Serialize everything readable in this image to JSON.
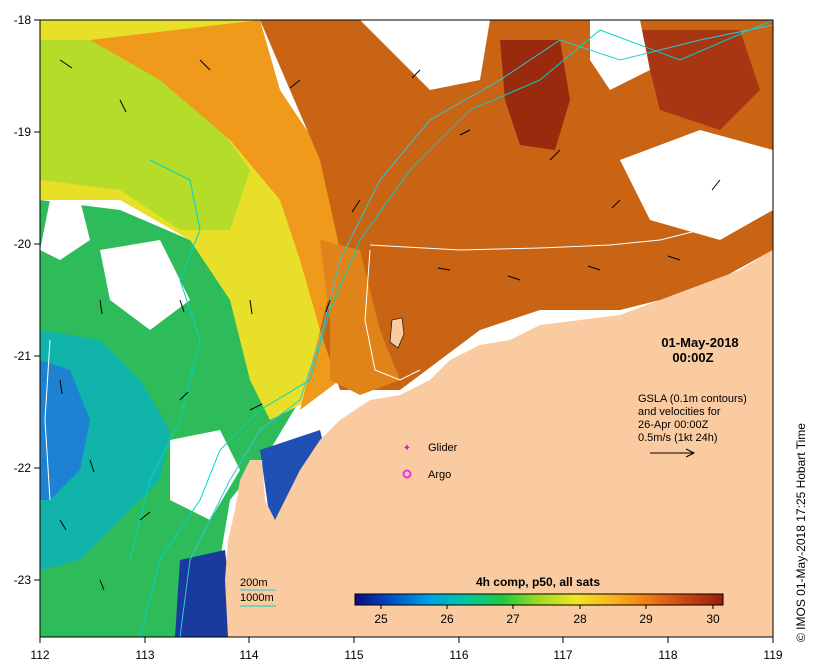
{
  "map": {
    "x_ticks": [
      "112",
      "113",
      "114",
      "115",
      "116",
      "117",
      "118",
      "119"
    ],
    "y_ticks": [
      "-18",
      "-19",
      "-20",
      "-21",
      "-22",
      "-23"
    ],
    "date": "01-May-2018",
    "time": "00:00Z",
    "gsla_lines": [
      "GSLA (0.1m contours)",
      "and velocities for",
      "26-Apr 00:00Z",
      "0.5m/s (1kt 24h)"
    ],
    "legend_glider": "Glider",
    "legend_argo": "Argo",
    "depth_200": "200m",
    "depth_1000": "1000m",
    "credit": "© IMOS 01-May-2018 17:25 Hobart Time"
  },
  "colorbar": {
    "title": "4h comp, p50, all sats",
    "labels": [
      "25",
      "26",
      "27",
      "28",
      "29",
      "30"
    ],
    "stops": [
      "#0a0a80",
      "#0050c8",
      "#00a0e6",
      "#00c8a0",
      "#20c840",
      "#a0dc20",
      "#f0e61e",
      "#fab41e",
      "#f07814",
      "#c84614",
      "#961e0a"
    ]
  },
  "colors": {
    "land": "#facaa0",
    "cloud": "#ffffff",
    "contour_200": "#2ec8dc",
    "contour_1000": "#00d2c8",
    "glider": "#d21ed2",
    "argo": "#e632e6"
  }
}
